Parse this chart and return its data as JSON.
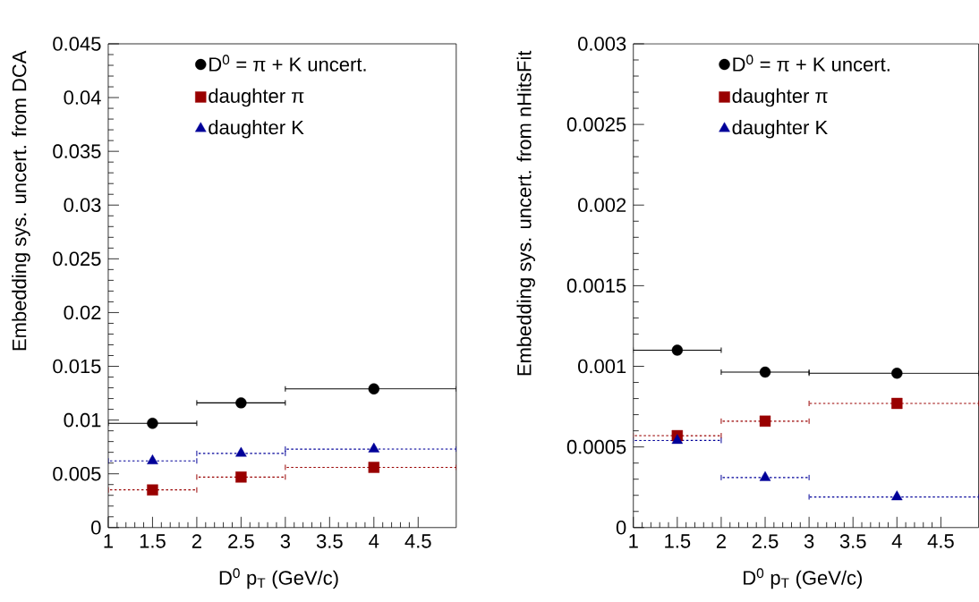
{
  "chart_data": [
    {
      "type": "scatter",
      "xlabel": "D$^{0}$ p$_{T}$ (GeV/c)",
      "ylabel": "Embedding sys. uncert. from DCA",
      "x": [
        1.5,
        2.5,
        4
      ],
      "xlim": [
        1,
        4.93
      ],
      "ylim": [
        0,
        0.045
      ],
      "xticks": [
        1,
        1.5,
        2,
        2.5,
        3,
        3.5,
        4,
        4.5
      ],
      "yticks": [
        0,
        0.005,
        0.01,
        0.015,
        0.02,
        0.025,
        0.03,
        0.035,
        0.04,
        0.045
      ],
      "legend": "top",
      "grid": false,
      "series": [
        {
          "name": "D$^{0}$ = π + K uncert.",
          "color": "#000000",
          "marker": "circle",
          "line_style": "solid",
          "values": [
            0.0097,
            0.0116,
            0.0129
          ],
          "xerrors": [
            0.5,
            0.5,
            [
              3,
              4.93
            ]
          ]
        },
        {
          "name": "daughter π",
          "color": "#990000",
          "marker": "square",
          "line_style": "dotted",
          "values": [
            0.0035,
            0.0047,
            0.0056
          ],
          "xerrors": [
            0.5,
            0.5,
            [
              3,
              4.93
            ]
          ]
        },
        {
          "name": "daughter K",
          "color": "#000099",
          "marker": "triangle",
          "line_style": "dotted",
          "values": [
            0.0062,
            0.0069,
            0.0073
          ],
          "xerrors": [
            0.5,
            0.5,
            [
              3,
              4.93
            ]
          ]
        }
      ]
    },
    {
      "type": "scatter",
      "xlabel": "D$^{0}$ p$_{T}$ (GeV/c)",
      "ylabel": "Embedding sys. uncert. from nHitsFit",
      "x": [
        1.5,
        2.5,
        4
      ],
      "xlim": [
        1,
        4.93
      ],
      "ylim": [
        0,
        0.003
      ],
      "xticks": [
        1,
        1.5,
        2,
        2.5,
        3,
        3.5,
        4,
        4.5
      ],
      "yticks": [
        0,
        0.0005,
        0.001,
        0.0015,
        0.002,
        0.0025,
        0.003
      ],
      "legend": "top",
      "grid": false,
      "series": [
        {
          "name": "D$^{0}$ = π + K uncert.",
          "color": "#000000",
          "marker": "circle",
          "line_style": "solid",
          "values": [
            0.0011,
            0.000964,
            0.000957
          ],
          "xerrors": [
            0.5,
            0.5,
            [
              3,
              4.93
            ]
          ]
        },
        {
          "name": "daughter π",
          "color": "#990000",
          "marker": "square",
          "line_style": "dotted",
          "values": [
            0.00057,
            0.00066,
            0.00077
          ],
          "xerrors": [
            0.5,
            0.5,
            [
              3,
              4.93
            ]
          ]
        },
        {
          "name": "daughter K",
          "color": "#000099",
          "marker": "triangle",
          "line_style": "dotted",
          "values": [
            0.00054,
            0.00031,
            0.00019
          ],
          "xerrors": [
            0.5,
            0.5,
            [
              3,
              4.93
            ]
          ]
        }
      ]
    }
  ]
}
